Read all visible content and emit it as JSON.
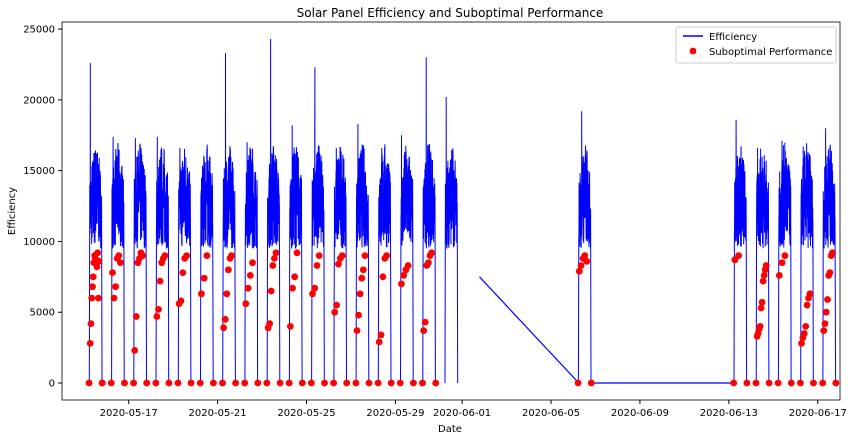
{
  "chart_data": {
    "type": "line",
    "title": "Solar Panel Efficiency and Suboptimal Performance",
    "xlabel": "Date",
    "ylabel": "Efficiency",
    "ylim": [
      -1200,
      25500
    ],
    "xlim": [
      "2020-05-14",
      "2020-06-18"
    ],
    "yticks": [
      0,
      5000,
      10000,
      15000,
      20000,
      25000
    ],
    "xticks": [
      "2020-05-17",
      "2020-05-21",
      "2020-05-25",
      "2020-05-29",
      "2020-06-01",
      "2020-06-05",
      "2020-06-09",
      "2020-06-13",
      "2020-06-17"
    ],
    "xtick_labels": [
      "2020-05-17",
      "2020-05-21",
      "2020-05-25",
      "2020-05-29",
      "2020-06-01",
      "2020-06-05",
      "2020-06-09",
      "2020-06-13",
      "2020-06-17"
    ],
    "legend_position": "top-right",
    "series": [
      {
        "name": "Efficiency",
        "kind": "line",
        "color": "#0000ff",
        "days": [
          "2020-05-15",
          "2020-05-16",
          "2020-05-17",
          "2020-05-18",
          "2020-05-19",
          "2020-05-20",
          "2020-05-21",
          "2020-05-22",
          "2020-05-23",
          "2020-05-24",
          "2020-05-25",
          "2020-05-26",
          "2020-05-27",
          "2020-05-28",
          "2020-05-29",
          "2020-05-30",
          "2020-05-31",
          "2020-06-06",
          "2020-06-13",
          "2020-06-14",
          "2020-06-15",
          "2020-06-16",
          "2020-06-17"
        ],
        "day_peaks": [
          22600,
          17400,
          17300,
          17400,
          16600,
          14400,
          23300,
          17000,
          24300,
          18200,
          22300,
          16600,
          18300,
          16600,
          17500,
          23000,
          20200,
          19200,
          18600,
          16600,
          17100,
          16700,
          18000
        ],
        "typical_range": [
          9500,
          17000
        ],
        "connecting_segments": [
          [
            "2020-06-01",
            7500,
            "2020-06-06",
            0
          ],
          [
            "2020-06-06",
            0,
            "2020-06-13",
            0
          ]
        ]
      },
      {
        "name": "Suboptimal Performance",
        "kind": "scatter",
        "color": "#ff0000",
        "points_by_day": [
          {
            "day": "2020-05-15",
            "values": [
              2800,
              4200,
              6000,
              6800,
              7500,
              8500,
              9000,
              8800,
              8500,
              8200,
              9200,
              6000,
              8600,
              0,
              0,
              0
            ]
          },
          {
            "day": "2020-05-16",
            "values": [
              7800,
              6000,
              6800,
              8800,
              9000,
              8500,
              0,
              0
            ]
          },
          {
            "day": "2020-05-17",
            "values": [
              2300,
              4700,
              8500,
              8800,
              9200,
              9000,
              0,
              0
            ]
          },
          {
            "day": "2020-05-18",
            "values": [
              4700,
              5200,
              7200,
              8500,
              8800,
              9000,
              0,
              0
            ]
          },
          {
            "day": "2020-05-19",
            "values": [
              5600,
              5800,
              7800,
              8800,
              9000,
              0,
              0
            ]
          },
          {
            "day": "2020-05-20",
            "values": [
              6300,
              7400,
              9000,
              0,
              0
            ]
          },
          {
            "day": "2020-05-21",
            "values": [
              3900,
              4500,
              6300,
              8000,
              8800,
              9000,
              0,
              0
            ]
          },
          {
            "day": "2020-05-22",
            "values": [
              5600,
              6700,
              7600,
              8500,
              0,
              0
            ]
          },
          {
            "day": "2020-05-23",
            "values": [
              3900,
              4200,
              6500,
              8300,
              8800,
              9200,
              0,
              0
            ]
          },
          {
            "day": "2020-05-24",
            "values": [
              4000,
              6700,
              7500,
              9200,
              0,
              0
            ]
          },
          {
            "day": "2020-05-25",
            "values": [
              6300,
              6700,
              8300,
              9000,
              0,
              0
            ]
          },
          {
            "day": "2020-05-26",
            "values": [
              5000,
              5500,
              8400,
              8800,
              9000,
              0,
              0
            ]
          },
          {
            "day": "2020-05-27",
            "values": [
              3700,
              4800,
              6300,
              7400,
              8000,
              9000,
              0,
              0
            ]
          },
          {
            "day": "2020-05-28",
            "values": [
              2900,
              3400,
              7500,
              8800,
              9000,
              0,
              0
            ]
          },
          {
            "day": "2020-05-29",
            "values": [
              7000,
              7600,
              8000,
              8300,
              0,
              0
            ]
          },
          {
            "day": "2020-05-30",
            "values": [
              3700,
              4300,
              8300,
              8500,
              9000,
              9200,
              0,
              0
            ]
          },
          {
            "day": "2020-06-06",
            "values": [
              7900,
              8300,
              8800,
              9000,
              8600,
              0,
              0
            ]
          },
          {
            "day": "2020-06-13",
            "values": [
              8700,
              9000,
              0,
              0
            ]
          },
          {
            "day": "2020-06-14",
            "values": [
              3300,
              3500,
              3800,
              4000,
              5300,
              5700,
              7200,
              7600,
              8000,
              8300,
              0,
              0
            ]
          },
          {
            "day": "2020-06-15",
            "values": [
              7600,
              8500,
              9000,
              0,
              0
            ]
          },
          {
            "day": "2020-06-16",
            "values": [
              2800,
              3200,
              3500,
              4000,
              5500,
              6000,
              6300,
              0,
              0
            ]
          },
          {
            "day": "2020-06-17",
            "values": [
              3700,
              4200,
              5000,
              5900,
              7600,
              7800,
              9000,
              9200,
              0,
              0
            ]
          }
        ]
      }
    ]
  }
}
